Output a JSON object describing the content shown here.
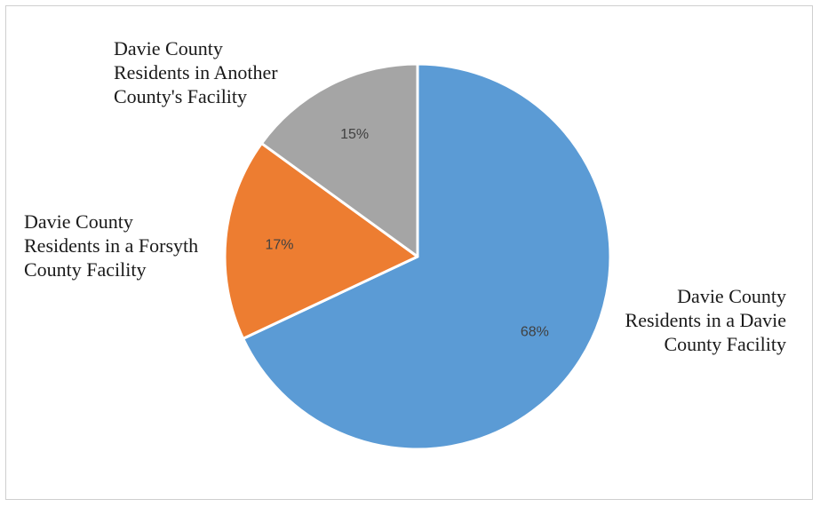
{
  "chart_data": {
    "type": "pie",
    "categories": [
      "Davie County Residents in a Davie County Facility",
      "Davie County Residents in a Forsyth County Facility",
      "Davie County Residents in Another County's Facility"
    ],
    "values": [
      68,
      17,
      15
    ],
    "value_labels": [
      "68%",
      "17%",
      "15%"
    ],
    "colors": [
      "#5b9bd5",
      "#ed7d31",
      "#a5a5a5"
    ],
    "label_lines": [
      [
        "Davie County",
        "Residents in a Davie",
        "County Facility"
      ],
      [
        "Davie County",
        "Residents in a Forsyth",
        "County Facility"
      ],
      [
        "Davie County",
        "Residents in Another",
        "County's Facility"
      ]
    ],
    "start_angle_deg": 0,
    "direction": "clockwise",
    "legend": "none"
  }
}
